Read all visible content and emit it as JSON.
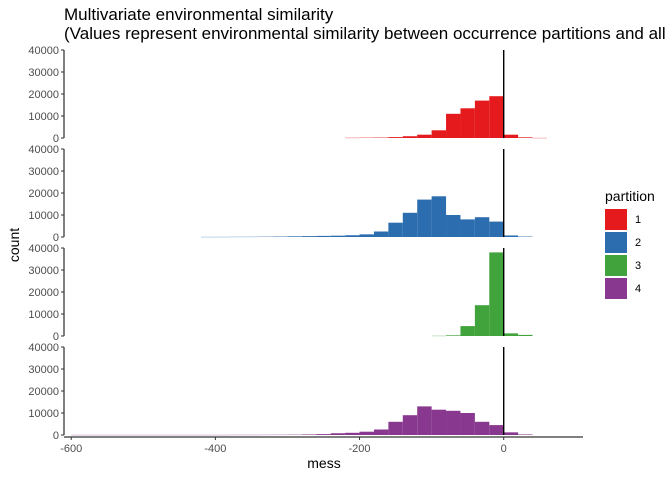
{
  "chart_data": {
    "type": "bar",
    "title": "Multivariate environmental similarity",
    "subtitle": "(Values represent environmental similarity between occurrence partitions and all",
    "xlabel": "mess",
    "ylabel": "count",
    "xlim": [
      -610,
      110
    ],
    "ylim": [
      0,
      40000
    ],
    "x_ticks": [
      -600,
      -400,
      -200,
      0
    ],
    "y_ticks": [
      0,
      10000,
      20000,
      30000,
      40000
    ],
    "vline_x": 0,
    "bin_width": 20,
    "legend": {
      "title": "partition",
      "position": "right"
    },
    "series": [
      {
        "name": "1",
        "color": "#E41A1C",
        "bins": [
          {
            "x": -210,
            "y": 100
          },
          {
            "x": -190,
            "y": 150
          },
          {
            "x": -170,
            "y": 200
          },
          {
            "x": -150,
            "y": 400
          },
          {
            "x": -130,
            "y": 800
          },
          {
            "x": -110,
            "y": 1500
          },
          {
            "x": -90,
            "y": 3500
          },
          {
            "x": -70,
            "y": 11000
          },
          {
            "x": -50,
            "y": 13500
          },
          {
            "x": -30,
            "y": 17000
          },
          {
            "x": -10,
            "y": 19000
          },
          {
            "x": 10,
            "y": 1500
          },
          {
            "x": 30,
            "y": 300
          },
          {
            "x": 50,
            "y": 50
          }
        ]
      },
      {
        "name": "2",
        "color": "#2B6DAE",
        "bins": [
          {
            "x": -410,
            "y": 50
          },
          {
            "x": -390,
            "y": 60
          },
          {
            "x": -370,
            "y": 80
          },
          {
            "x": -350,
            "y": 100
          },
          {
            "x": -330,
            "y": 150
          },
          {
            "x": -310,
            "y": 200
          },
          {
            "x": -290,
            "y": 300
          },
          {
            "x": -270,
            "y": 400
          },
          {
            "x": -250,
            "y": 500
          },
          {
            "x": -230,
            "y": 600
          },
          {
            "x": -210,
            "y": 800
          },
          {
            "x": -190,
            "y": 1200
          },
          {
            "x": -170,
            "y": 2500
          },
          {
            "x": -150,
            "y": 6500
          },
          {
            "x": -130,
            "y": 11000
          },
          {
            "x": -110,
            "y": 17000
          },
          {
            "x": -90,
            "y": 18500
          },
          {
            "x": -70,
            "y": 10000
          },
          {
            "x": -50,
            "y": 8000
          },
          {
            "x": -30,
            "y": 9000
          },
          {
            "x": -10,
            "y": 7000
          },
          {
            "x": 10,
            "y": 700
          },
          {
            "x": 30,
            "y": 200
          }
        ]
      },
      {
        "name": "3",
        "color": "#41A33B",
        "bins": [
          {
            "x": -90,
            "y": 80
          },
          {
            "x": -70,
            "y": 300
          },
          {
            "x": -50,
            "y": 4500
          },
          {
            "x": -30,
            "y": 14000
          },
          {
            "x": -10,
            "y": 38000
          },
          {
            "x": 10,
            "y": 1200
          },
          {
            "x": 30,
            "y": 500
          }
        ]
      },
      {
        "name": "4",
        "color": "#88388E",
        "bins": [
          {
            "x": -590,
            "y": 60
          },
          {
            "x": -570,
            "y": 60
          },
          {
            "x": -550,
            "y": 60
          },
          {
            "x": -530,
            "y": 60
          },
          {
            "x": -510,
            "y": 60
          },
          {
            "x": -490,
            "y": 60
          },
          {
            "x": -470,
            "y": 60
          },
          {
            "x": -450,
            "y": 60
          },
          {
            "x": -430,
            "y": 60
          },
          {
            "x": -410,
            "y": 60
          },
          {
            "x": -390,
            "y": 60
          },
          {
            "x": -370,
            "y": 80
          },
          {
            "x": -350,
            "y": 80
          },
          {
            "x": -330,
            "y": 100
          },
          {
            "x": -310,
            "y": 120
          },
          {
            "x": -290,
            "y": 150
          },
          {
            "x": -270,
            "y": 250
          },
          {
            "x": -250,
            "y": 400
          },
          {
            "x": -230,
            "y": 800
          },
          {
            "x": -210,
            "y": 1000
          },
          {
            "x": -190,
            "y": 1500
          },
          {
            "x": -170,
            "y": 2500
          },
          {
            "x": -150,
            "y": 6000
          },
          {
            "x": -130,
            "y": 9000
          },
          {
            "x": -110,
            "y": 13000
          },
          {
            "x": -90,
            "y": 11500
          },
          {
            "x": -70,
            "y": 11000
          },
          {
            "x": -50,
            "y": 10000
          },
          {
            "x": -30,
            "y": 6000
          },
          {
            "x": -10,
            "y": 4500
          },
          {
            "x": 10,
            "y": 1200
          },
          {
            "x": 30,
            "y": 250
          }
        ]
      }
    ]
  }
}
